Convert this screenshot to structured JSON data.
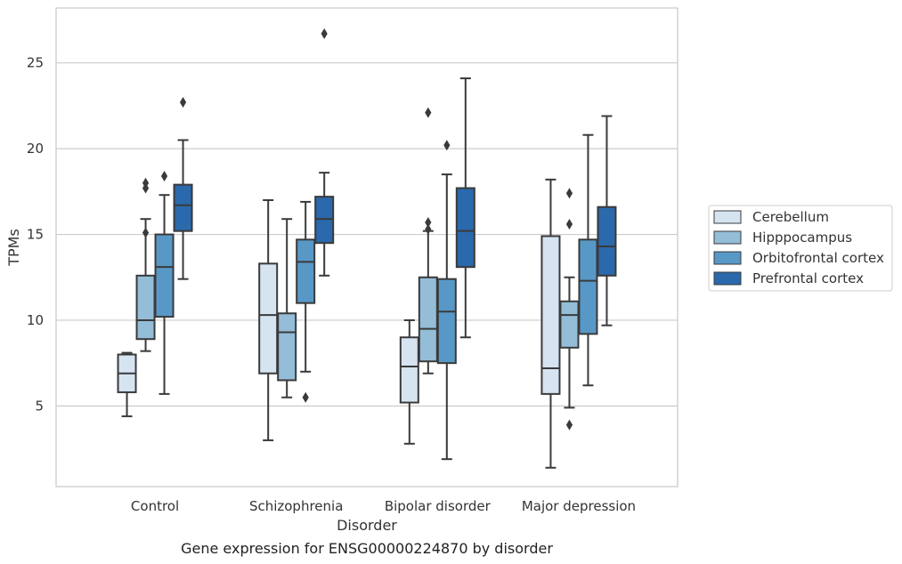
{
  "chart_data": {
    "type": "box",
    "title": "",
    "caption": "Gene expression for ENSG00000224870 by disorder",
    "xlabel": "Disorder",
    "ylabel": "TPMs",
    "ylim": [
      0.3,
      28.2
    ],
    "yticks": [
      5,
      10,
      15,
      20,
      25
    ],
    "grid": "horizontal",
    "legend_position": "right",
    "categories": [
      "Control",
      "Schizophrenia",
      "Bipolar disorder",
      "Major depression"
    ],
    "series": [
      {
        "name": "Cerebellum",
        "color": "#d6e4f2",
        "boxes": [
          {
            "whislo": 4.4,
            "q1": 5.8,
            "med": 6.9,
            "q3": 8.0,
            "whishi": 8.1,
            "fliers": []
          },
          {
            "whislo": 3.0,
            "q1": 6.9,
            "med": 10.3,
            "q3": 13.3,
            "whishi": 17.0,
            "fliers": []
          },
          {
            "whislo": 2.8,
            "q1": 5.2,
            "med": 7.3,
            "q3": 9.0,
            "whishi": 10.0,
            "fliers": []
          },
          {
            "whislo": 1.4,
            "q1": 5.7,
            "med": 7.2,
            "q3": 14.9,
            "whishi": 18.2,
            "fliers": []
          }
        ]
      },
      {
        "name": "Hipppocampus",
        "color": "#94bdd8",
        "boxes": [
          {
            "whislo": 8.2,
            "q1": 8.9,
            "med": 10.0,
            "q3": 12.6,
            "whishi": 15.9,
            "fliers": [
              15.1,
              17.7,
              18.0
            ]
          },
          {
            "whislo": 5.5,
            "q1": 6.5,
            "med": 9.3,
            "q3": 10.4,
            "whishi": 15.9,
            "fliers": []
          },
          {
            "whislo": 6.9,
            "q1": 7.6,
            "med": 9.5,
            "q3": 12.5,
            "whishi": 15.2,
            "fliers": [
              15.3,
              15.7,
              22.1
            ]
          },
          {
            "whislo": 4.9,
            "q1": 8.4,
            "med": 10.3,
            "q3": 11.1,
            "whishi": 12.5,
            "fliers": [
              3.9,
              15.6,
              17.4
            ]
          }
        ]
      },
      {
        "name": "Orbitofrontal cortex",
        "color": "#5898c6",
        "boxes": [
          {
            "whislo": 5.7,
            "q1": 10.2,
            "med": 13.1,
            "q3": 15.0,
            "whishi": 17.3,
            "fliers": [
              18.4
            ]
          },
          {
            "whislo": 7.0,
            "q1": 11.0,
            "med": 13.4,
            "q3": 14.7,
            "whishi": 16.9,
            "fliers": [
              5.5
            ]
          },
          {
            "whislo": 1.9,
            "q1": 7.5,
            "med": 10.5,
            "q3": 12.4,
            "whishi": 18.5,
            "fliers": [
              20.2
            ]
          },
          {
            "whislo": 6.2,
            "q1": 9.2,
            "med": 12.3,
            "q3": 14.7,
            "whishi": 20.8,
            "fliers": []
          }
        ]
      },
      {
        "name": "Prefrontal cortex",
        "color": "#2a69ab",
        "boxes": [
          {
            "whislo": 12.4,
            "q1": 15.2,
            "med": 16.7,
            "q3": 17.9,
            "whishi": 20.5,
            "fliers": [
              22.7
            ]
          },
          {
            "whislo": 12.6,
            "q1": 14.5,
            "med": 15.9,
            "q3": 17.2,
            "whishi": 18.6,
            "fliers": [
              26.7
            ]
          },
          {
            "whislo": 9.0,
            "q1": 13.1,
            "med": 15.2,
            "q3": 17.7,
            "whishi": 24.1,
            "fliers": []
          },
          {
            "whislo": 9.7,
            "q1": 12.6,
            "med": 14.3,
            "q3": 16.6,
            "whishi": 21.9,
            "fliers": []
          }
        ]
      }
    ]
  }
}
